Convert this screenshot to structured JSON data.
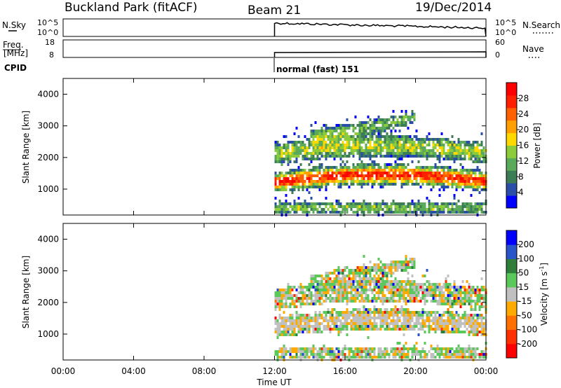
{
  "header": {
    "station": "Buckland Park (fitACF)",
    "beam": "Beam 21",
    "date": "19/Dec/2014"
  },
  "top_panels": {
    "nsky_label": "N.Sky",
    "nsky_ticks": [
      "10^5",
      "10^0"
    ],
    "nsearch_label": "N.Search",
    "nsearch_ticks": [
      "10^5",
      "10^0"
    ],
    "freq_label": "Freq.",
    "freq_unit": "[MHz]",
    "freq_ticks": [
      "18",
      "8"
    ],
    "nave_label": "Nave",
    "nave_ticks": [
      "60",
      "0"
    ],
    "cpid_label": "CPID",
    "cpid_value": "normal (fast) 151"
  },
  "colors": {
    "power_scale": [
      "#0000ff",
      "#2a4fa8",
      "#3c7d56",
      "#5aaa5a",
      "#8ccc3c",
      "#ffd800",
      "#ffa000",
      "#ff6000",
      "#ff2000",
      "#ff0000"
    ],
    "velocity_scale": [
      "#0000ff",
      "#2855c8",
      "#2f7f3a",
      "#5ac85a",
      "#c0c0c0",
      "#ffaa00",
      "#ff7000",
      "#ff3000",
      "#ff0000"
    ]
  },
  "chart_data": [
    {
      "type": "heatmap",
      "name": "power-panel",
      "ylabel": "Slant Range [km]",
      "ylim": [
        180,
        4500
      ],
      "yticks": [
        "4000",
        "3000",
        "2000",
        "1000"
      ],
      "ytick_values": [
        4000,
        3000,
        2000,
        1000
      ],
      "xlim_hours": [
        0,
        24
      ],
      "colorbar": {
        "label": "Power [dB]",
        "ticks": [
          "28",
          "24",
          "20",
          "16",
          "12",
          "8",
          "4"
        ],
        "range": [
          0,
          30
        ]
      },
      "data_start_hour": 12
    },
    {
      "type": "heatmap",
      "name": "velocity-panel",
      "ylabel": "Slant Range [km]",
      "ylim": [
        180,
        4500
      ],
      "yticks": [
        "4000",
        "3000",
        "2000",
        "1000"
      ],
      "ytick_values": [
        4000,
        3000,
        2000,
        1000
      ],
      "xlim_hours": [
        0,
        24
      ],
      "colorbar": {
        "label": "Velocity [m s",
        "label_sup": "-1",
        "label_end": "]",
        "ticks": [
          "200",
          "100",
          "50",
          "15",
          "-15",
          "-50",
          "-100",
          "-200"
        ]
      },
      "data_start_hour": 12
    }
  ],
  "xaxis": {
    "ticks": [
      "00:00",
      "04:00",
      "08:00",
      "12:00",
      "16:00",
      "20:00",
      "00:00"
    ],
    "tick_hours": [
      0,
      4,
      8,
      12,
      16,
      20,
      24
    ],
    "label": "Time UT"
  }
}
